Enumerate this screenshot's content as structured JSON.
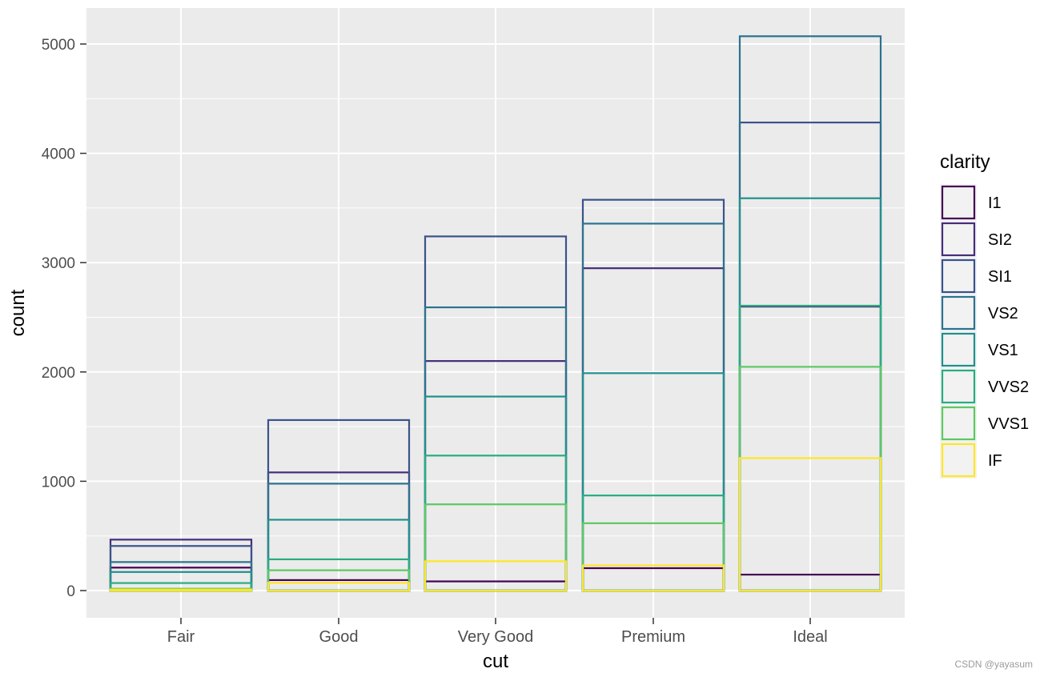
{
  "watermark": "CSDN @yayasum",
  "chart_data": {
    "type": "bar",
    "subtype": "overlapping outlined bars (position identity, fill none)",
    "title": "",
    "xlabel": "cut",
    "ylabel": "count",
    "ylim": [
      0,
      5200
    ],
    "yticks": [
      0,
      1000,
      2000,
      3000,
      4000,
      5000
    ],
    "grid": true,
    "legend": {
      "title": "clarity",
      "position": "right"
    },
    "categories": [
      "Fair",
      "Good",
      "Very Good",
      "Premium",
      "Ideal"
    ],
    "series": [
      {
        "name": "I1",
        "color": "#440154",
        "values": [
          210,
          96,
          84,
          205,
          146
        ]
      },
      {
        "name": "SI2",
        "color": "#472D7B",
        "values": [
          466,
          1081,
          2100,
          2949,
          2598
        ]
      },
      {
        "name": "SI1",
        "color": "#3B528B",
        "values": [
          408,
          1560,
          3240,
          3575,
          4282
        ]
      },
      {
        "name": "VS2",
        "color": "#2C728E",
        "values": [
          261,
          978,
          2591,
          3357,
          5071
        ]
      },
      {
        "name": "VS1",
        "color": "#21908C",
        "values": [
          170,
          648,
          1775,
          1989,
          3589
        ]
      },
      {
        "name": "VVS2",
        "color": "#27AD81",
        "values": [
          69,
          286,
          1235,
          870,
          2606
        ]
      },
      {
        "name": "VVS1",
        "color": "#5DC863",
        "values": [
          17,
          186,
          789,
          616,
          2047
        ]
      },
      {
        "name": "IF",
        "color": "#FDE725",
        "values": [
          9,
          71,
          268,
          230,
          1212
        ]
      }
    ]
  }
}
